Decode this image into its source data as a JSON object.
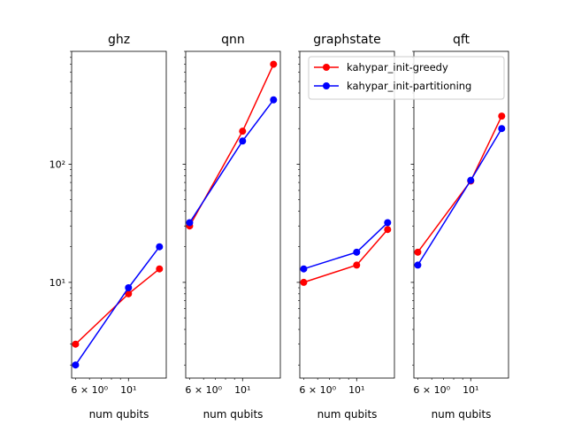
{
  "chart_data": [
    {
      "type": "line",
      "title": "ghz",
      "xlabel": "num qubits",
      "x_scale": "log",
      "y_scale": "log",
      "x_tick_labels": [
        "6 × 10⁰",
        "10¹"
      ],
      "y_tick_labels": [
        "10¹",
        "10²"
      ],
      "series": [
        {
          "name": "kahypar_init-greedy",
          "color": "#ff0000",
          "x": [
            5,
            10,
            15
          ],
          "y": [
            3,
            8,
            13
          ]
        },
        {
          "name": "kahypar_init-partitioning",
          "color": "#0000ff",
          "x": [
            5,
            10,
            15
          ],
          "y": [
            2,
            9,
            20
          ]
        }
      ]
    },
    {
      "type": "line",
      "title": "qnn",
      "xlabel": "num qubits",
      "x_scale": "log",
      "y_scale": "log",
      "x_tick_labels": [
        "6 × 10⁰",
        "10¹"
      ],
      "series": [
        {
          "name": "kahypar_init-greedy",
          "color": "#ff0000",
          "x": [
            5,
            10,
            15
          ],
          "y": [
            30,
            190,
            700
          ]
        },
        {
          "name": "kahypar_init-partitioning",
          "color": "#0000ff",
          "x": [
            5,
            10,
            15
          ],
          "y": [
            32,
            157,
            350
          ]
        }
      ]
    },
    {
      "type": "line",
      "title": "graphstate",
      "xlabel": "num qubits",
      "x_scale": "log",
      "y_scale": "log",
      "x_tick_labels": [
        "6 × 10⁰",
        "10¹"
      ],
      "series": [
        {
          "name": "kahypar_init-greedy",
          "color": "#ff0000",
          "x": [
            5,
            10,
            15
          ],
          "y": [
            10,
            14,
            28
          ]
        },
        {
          "name": "kahypar_init-partitioning",
          "color": "#0000ff",
          "x": [
            5,
            10,
            15
          ],
          "y": [
            13,
            18,
            32
          ]
        }
      ]
    },
    {
      "type": "line",
      "title": "qft",
      "xlabel": "num qubits",
      "x_scale": "log",
      "y_scale": "log",
      "x_tick_labels": [
        "6 × 10⁰",
        "10¹"
      ],
      "series": [
        {
          "name": "kahypar_init-greedy",
          "color": "#ff0000",
          "x": [
            5,
            10,
            15
          ],
          "y": [
            18,
            72,
            255
          ]
        },
        {
          "name": "kahypar_init-partitioning",
          "color": "#0000ff",
          "x": [
            5,
            10,
            15
          ],
          "y": [
            14,
            73,
            200
          ]
        }
      ]
    }
  ],
  "legend": {
    "position": "upper right of graphstate panel",
    "entries": [
      {
        "label": "kahypar_init-greedy",
        "color": "#ff0000"
      },
      {
        "label": "kahypar_init-partitioning",
        "color": "#0000ff"
      }
    ]
  }
}
